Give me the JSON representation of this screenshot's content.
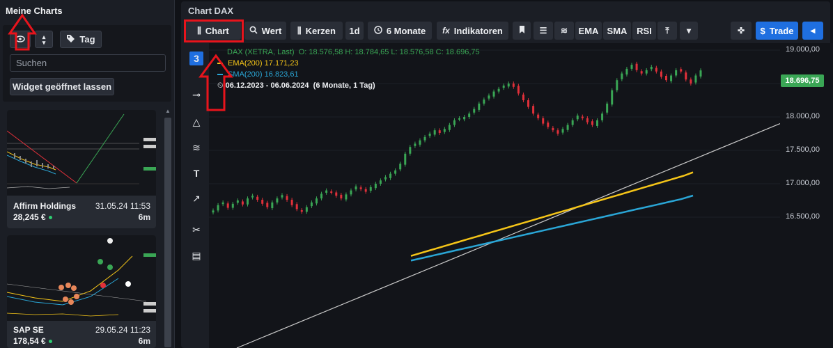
{
  "left_panel": {
    "title": "Meine Charts",
    "tag_button": "Tag",
    "search_placeholder": "Suchen",
    "open_widget_button": "Widget geöffnet lassen",
    "cards": [
      {
        "name": "Affirm Holdings",
        "date": "31.05.24 11:53",
        "price": "28,245 €",
        "age": "6m"
      },
      {
        "name": "SAP SE",
        "date": "29.05.24 11:23",
        "price": "178,54 €",
        "age": "6m"
      }
    ]
  },
  "chart_panel": {
    "title": "Chart DAX",
    "toolbar": {
      "chart": "Chart",
      "wert": "Wert",
      "kerzen": "Kerzen",
      "interval": "1d",
      "range": "6 Monate",
      "indikatoren": "Indikatoren",
      "ema": "EMA",
      "sma": "SMA",
      "rsi": "RSI",
      "trade": "Trade"
    },
    "legend": {
      "instrument": "DAX (XETRA, Last)",
      "ohlc": "O: 18.576,58  H: 18.784,65  L: 18.576,58  C: 18.696,75",
      "ema_label": "EMA(200)",
      "ema_value": "17.171,23",
      "sma_label": "SMA(200)",
      "sma_value": "16.823,61",
      "period": "06.12.2023 - 06.06.2024",
      "period_detail": "(6 Monate, 1 Tag)"
    },
    "last_price": "18.696,75",
    "colors": {
      "up": "#3aa655",
      "down": "#e0303a",
      "ema": "#f5c518",
      "sma": "#2aa6d6",
      "accent": "#1f6fe0"
    }
  },
  "chart_data": {
    "type": "line",
    "y_ticks": [
      "19.000,00",
      "18.500,00",
      "18.000,00",
      "17.500,00",
      "17.000,00",
      "16.500,00"
    ],
    "ylim": [
      16000,
      19200
    ],
    "close": [
      16600,
      16680,
      16720,
      16640,
      16700,
      16750,
      16690,
      16780,
      16820,
      16760,
      16700,
      16650,
      16720,
      16780,
      16830,
      16760,
      16680,
      16620,
      16580,
      16650,
      16720,
      16780,
      16850,
      16900,
      16870,
      16820,
      16780,
      16840,
      16900,
      16960,
      16920,
      16880,
      16950,
      17000,
      17050,
      17100,
      17150,
      17200,
      17300,
      17450,
      17550,
      17600,
      17650,
      17700,
      17750,
      17800,
      17760,
      17820,
      17880,
      17950,
      17980,
      18000,
      18050,
      18120,
      18200,
      18260,
      18320,
      18380,
      18420,
      18470,
      18500,
      18450,
      18350,
      18250,
      18150,
      18050,
      17980,
      17900,
      17850,
      17800,
      17750,
      17820,
      17880,
      17950,
      18020,
      17980,
      17920,
      17880,
      17950,
      18050,
      18200,
      18400,
      18550,
      18650,
      18720,
      18780,
      18700,
      18650,
      18700,
      18750,
      18680,
      18600,
      18550,
      18620,
      18700,
      18680,
      18560,
      18500,
      18620,
      18696
    ],
    "ema200": [
      15920,
      15960,
      16000,
      16040,
      16080,
      16120,
      16160,
      16200,
      16240,
      16280,
      16320,
      16360,
      16400,
      16440,
      16480,
      16520,
      16560,
      16600,
      16640,
      16680,
      16720,
      16760,
      16800,
      16840,
      16880,
      16920,
      16960,
      17000,
      17040,
      17080,
      17120,
      17171
    ],
    "sma200": [
      15850,
      15890,
      15930,
      15970,
      16010,
      16050,
      16090,
      16130,
      16170,
      16210,
      16250,
      16290,
      16330,
      16370,
      16410,
      16450,
      16490,
      16530,
      16570,
      16610,
      16650,
      16690,
      16730,
      16770,
      16823
    ]
  }
}
